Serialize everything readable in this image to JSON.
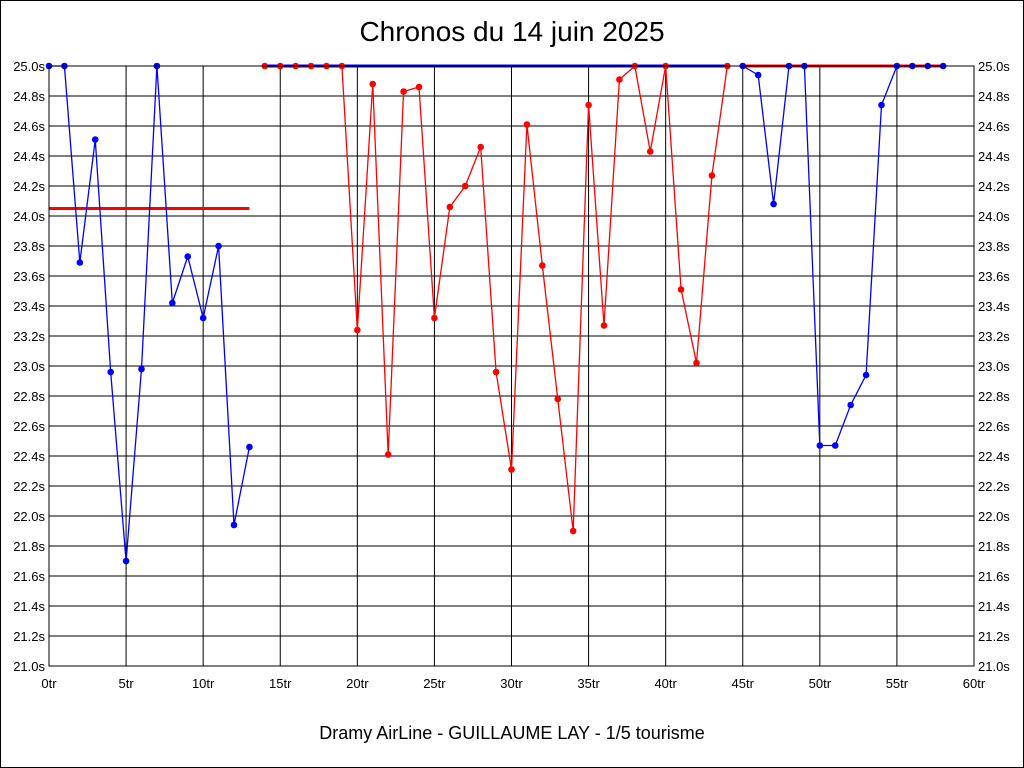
{
  "chart_data": {
    "type": "line",
    "title": "Chronos du 14 juin 2025",
    "subtitle": "Dramy AirLine - GUILLAUME LAY - 1/5 tourisme",
    "xlabel": "",
    "ylabel": "",
    "xlim": [
      0,
      60
    ],
    "ylim": [
      21.0,
      25.0
    ],
    "grid": true,
    "x_ticks": [
      "0tr",
      "5tr",
      "10tr",
      "15tr",
      "20tr",
      "25tr",
      "30tr",
      "35tr",
      "40tr",
      "45tr",
      "50tr",
      "55tr",
      "60tr"
    ],
    "y_ticks": [
      "21.0s",
      "21.2s",
      "21.4s",
      "21.6s",
      "21.8s",
      "22.0s",
      "22.2s",
      "22.4s",
      "22.6s",
      "22.8s",
      "23.0s",
      "23.2s",
      "23.4s",
      "23.6s",
      "23.8s",
      "24.0s",
      "24.2s",
      "24.4s",
      "24.6s",
      "24.8s",
      "25.0s"
    ],
    "series": [
      {
        "color": "#0000ff",
        "points": [
          [
            0,
            25.0
          ],
          [
            1,
            25.0
          ],
          [
            2,
            23.69
          ],
          [
            3,
            24.51
          ],
          [
            4,
            22.96
          ],
          [
            5,
            21.7
          ],
          [
            6,
            22.98
          ],
          [
            7,
            25.0
          ],
          [
            8,
            23.42
          ],
          [
            9,
            23.73
          ],
          [
            10,
            23.32
          ],
          [
            11,
            23.8
          ],
          [
            12,
            21.94
          ],
          [
            13,
            22.46
          ]
        ]
      },
      {
        "color": "#ff0000",
        "points": [
          [
            14,
            25.0
          ],
          [
            15,
            25.0
          ],
          [
            16,
            25.0
          ],
          [
            17,
            25.0
          ],
          [
            18,
            25.0
          ],
          [
            19,
            25.0
          ],
          [
            20,
            23.24
          ],
          [
            21,
            24.88
          ],
          [
            22,
            22.41
          ],
          [
            23,
            24.83
          ],
          [
            24,
            24.86
          ],
          [
            25,
            23.32
          ],
          [
            26,
            24.06
          ],
          [
            27,
            24.2
          ],
          [
            28,
            24.46
          ],
          [
            29,
            22.96
          ],
          [
            30,
            22.31
          ],
          [
            31,
            24.61
          ],
          [
            32,
            23.67
          ],
          [
            33,
            22.78
          ],
          [
            34,
            21.9
          ],
          [
            35,
            24.74
          ],
          [
            36,
            23.27
          ],
          [
            37,
            24.91
          ],
          [
            38,
            25.0
          ],
          [
            39,
            24.43
          ],
          [
            40,
            25.0
          ],
          [
            41,
            23.51
          ],
          [
            42,
            23.02
          ],
          [
            43,
            24.27
          ],
          [
            44,
            25.0
          ]
        ]
      },
      {
        "color": "#0000ff",
        "points": [
          [
            45,
            25.0
          ],
          [
            46,
            24.94
          ],
          [
            47,
            24.08
          ],
          [
            48,
            25.0
          ],
          [
            49,
            25.0
          ],
          [
            50,
            22.47
          ],
          [
            51,
            22.47
          ],
          [
            52,
            22.74
          ],
          [
            53,
            22.94
          ],
          [
            54,
            24.74
          ],
          [
            55,
            25.0
          ],
          [
            56,
            25.0
          ],
          [
            57,
            25.0
          ],
          [
            58,
            25.0
          ]
        ]
      }
    ],
    "reference_lines": [
      {
        "color": "#ff0000",
        "y": 24.05,
        "x_from": 0,
        "x_to": 13
      },
      {
        "color": "#0000ff",
        "y": 25.0,
        "x_from": 14,
        "x_to": 44
      },
      {
        "color": "#ff0000",
        "y": 25.0,
        "x_from": 45,
        "x_to": 58
      }
    ]
  }
}
